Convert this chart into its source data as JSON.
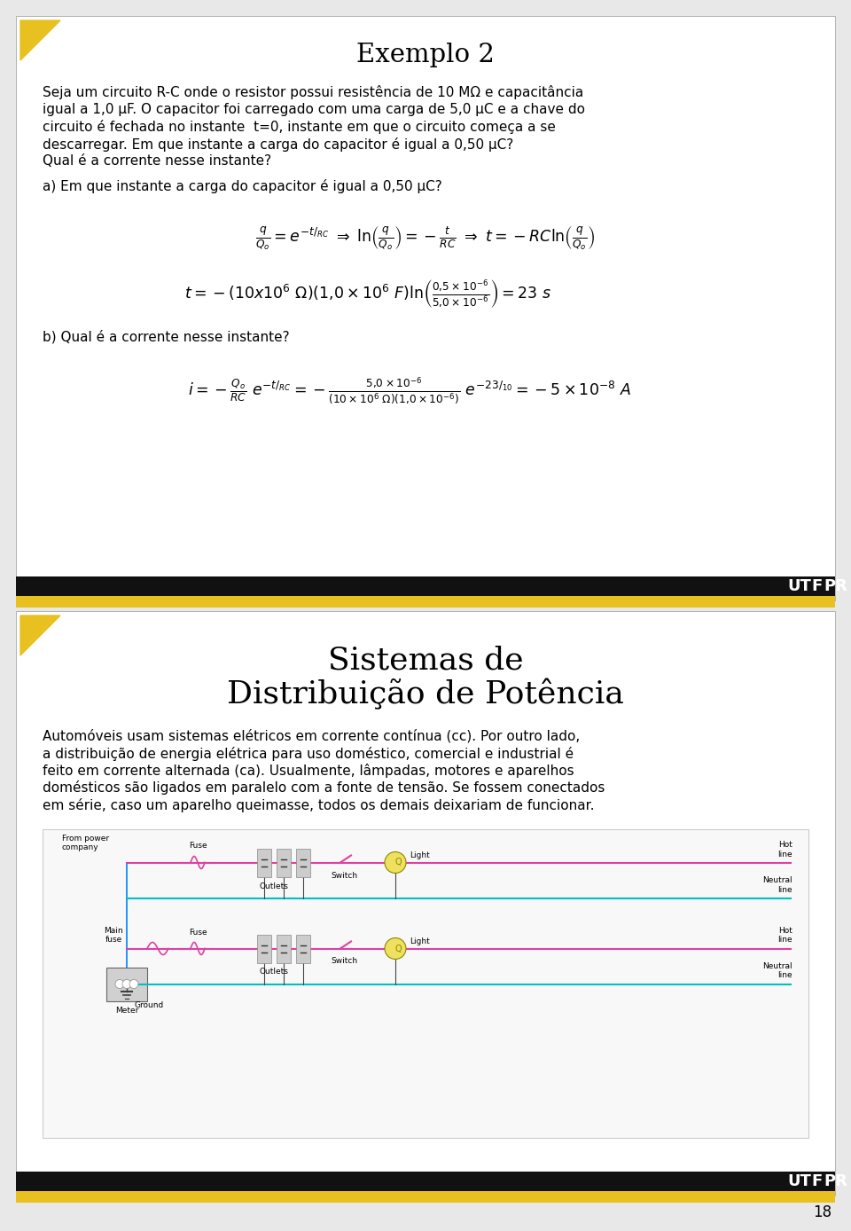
{
  "page_bg": "#e8e8e8",
  "slide1": {
    "bg": "#ffffff",
    "title": "Exemplo 2",
    "triangle_color": "#e8c020",
    "black_bar_color": "#111111",
    "gold_bar_color": "#e8c020",
    "body_text_lines": [
      "Seja um circuito R-C onde o resistor possui resistência de 10 MΩ e capacitância",
      "igual a 1,0 μF. O capacitor foi carregado com uma carga de 5,0 μC e a chave do",
      "circuito é fechada no instante  t=0, instante em que o circuito começa a se",
      "descarregar. Em que instante a carga do capacitor é igual a 0,50 μC?",
      "Qual é a corrente nesse instante?"
    ],
    "part_a_label": "a) Em que instante a carga do capacitor é igual a 0,50 μC?",
    "part_b_label": "b) Qual é a corrente nesse instante?"
  },
  "slide2": {
    "bg": "#ffffff",
    "title_line1": "Sistemas de",
    "title_line2": "Distribuição de Potência",
    "triangle_color": "#e8c020",
    "black_bar_color": "#111111",
    "gold_bar_color": "#e8c020",
    "body_text_lines": [
      "Automóveis usam sistemas elétricos em corrente contínua (cc). Por outro lado,",
      "a distribuição de energia elétrica para uso doméstico, comercial e industrial é",
      "feito em corrente alternada (ca). Usualmente, lâmpadas, motores e aparelhos",
      "domésticos são ligados em paralelo com a fonte de tensão. Se fossem conectados",
      "em série, caso um aparelho queimasse, todos os demais deixariam de funcionar."
    ]
  },
  "page_number": "18",
  "hot_line_color": "#e040a0",
  "neutral_line_color": "#00c0c0",
  "wire_color": "#0080ff",
  "ground_color": "#404040"
}
